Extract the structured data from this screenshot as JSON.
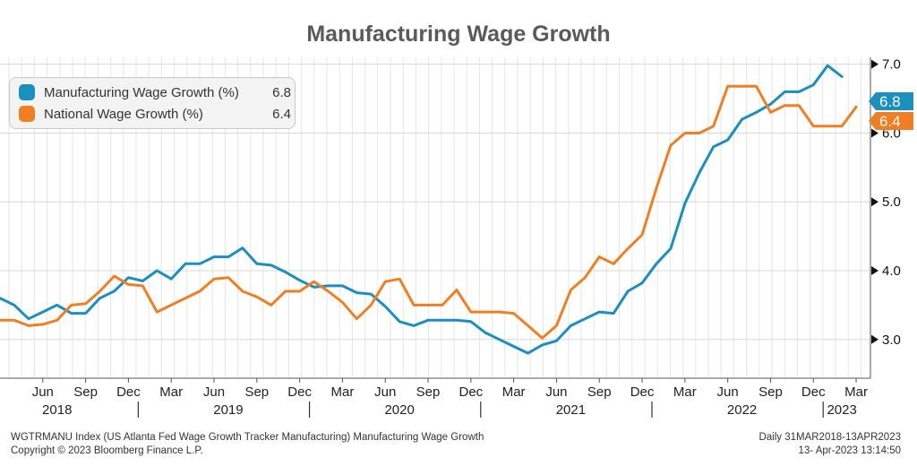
{
  "chart_data": {
    "type": "line",
    "title": "Manufacturing Wage Growth",
    "ylim": [
      2.45,
      7.1
    ],
    "yticks": [
      3.0,
      4.0,
      5.0,
      6.0,
      7.0
    ],
    "ytick_labels": [
      "3.0",
      "4.0",
      "5.0",
      "6.0",
      "7.0"
    ],
    "x_range": [
      "2018-03",
      "2023-04"
    ],
    "month_ticks": [
      {
        "label": "Jun",
        "date": "2018-06"
      },
      {
        "label": "Sep",
        "date": "2018-09"
      },
      {
        "label": "Dec",
        "date": "2018-12"
      },
      {
        "label": "Mar",
        "date": "2019-03"
      },
      {
        "label": "Jun",
        "date": "2019-06"
      },
      {
        "label": "Sep",
        "date": "2019-09"
      },
      {
        "label": "Dec",
        "date": "2019-12"
      },
      {
        "label": "Mar",
        "date": "2020-03"
      },
      {
        "label": "Jun",
        "date": "2020-06"
      },
      {
        "label": "Sep",
        "date": "2020-09"
      },
      {
        "label": "Dec",
        "date": "2020-12"
      },
      {
        "label": "Mar",
        "date": "2021-03"
      },
      {
        "label": "Jun",
        "date": "2021-06"
      },
      {
        "label": "Sep",
        "date": "2021-09"
      },
      {
        "label": "Dec",
        "date": "2021-12"
      },
      {
        "label": "Mar",
        "date": "2022-03"
      },
      {
        "label": "Jun",
        "date": "2022-06"
      },
      {
        "label": "Sep",
        "date": "2022-09"
      },
      {
        "label": "Dec",
        "date": "2022-12"
      },
      {
        "label": "Mar",
        "date": "2023-03"
      }
    ],
    "year_labels": [
      {
        "label": "2018",
        "date": "2018-07"
      },
      {
        "label": "2019",
        "date": "2019-07"
      },
      {
        "label": "2020",
        "date": "2020-07"
      },
      {
        "label": "2021",
        "date": "2021-07"
      },
      {
        "label": "2022",
        "date": "2022-07"
      },
      {
        "label": "2023",
        "date": "2023-02"
      }
    ],
    "year_separators": [
      "2019-01",
      "2020-01",
      "2021-01",
      "2022-01",
      "2023-01"
    ],
    "grid": true,
    "legend_position": "top-left",
    "series": [
      {
        "name": "Manufacturing Wage Growth (%)",
        "last_value": "6.8",
        "color": "#1a8fc0",
        "points": [
          [
            "2018-03",
            3.6
          ],
          [
            "2018-04",
            3.5
          ],
          [
            "2018-05",
            3.3
          ],
          [
            "2018-06",
            3.4
          ],
          [
            "2018-07",
            3.5
          ],
          [
            "2018-08",
            3.38
          ],
          [
            "2018-09",
            3.38
          ],
          [
            "2018-10",
            3.6
          ],
          [
            "2018-11",
            3.7
          ],
          [
            "2018-12",
            3.9
          ],
          [
            "2019-01",
            3.85
          ],
          [
            "2019-02",
            4.0
          ],
          [
            "2019-03",
            3.88
          ],
          [
            "2019-04",
            4.1
          ],
          [
            "2019-05",
            4.1
          ],
          [
            "2019-06",
            4.2
          ],
          [
            "2019-07",
            4.2
          ],
          [
            "2019-08",
            4.33
          ],
          [
            "2019-09",
            4.1
          ],
          [
            "2019-10",
            4.08
          ],
          [
            "2019-11",
            3.98
          ],
          [
            "2019-12",
            3.86
          ],
          [
            "2020-01",
            3.76
          ],
          [
            "2020-02",
            3.78
          ],
          [
            "2020-03",
            3.78
          ],
          [
            "2020-04",
            3.68
          ],
          [
            "2020-05",
            3.66
          ],
          [
            "2020-06",
            3.48
          ],
          [
            "2020-07",
            3.26
          ],
          [
            "2020-08",
            3.2
          ],
          [
            "2020-09",
            3.28
          ],
          [
            "2020-10",
            3.28
          ],
          [
            "2020-11",
            3.28
          ],
          [
            "2020-12",
            3.26
          ],
          [
            "2021-01",
            3.1
          ],
          [
            "2021-02",
            3.0
          ],
          [
            "2021-03",
            2.9
          ],
          [
            "2021-04",
            2.8
          ],
          [
            "2021-05",
            2.92
          ],
          [
            "2021-06",
            2.98
          ],
          [
            "2021-07",
            3.2
          ],
          [
            "2021-08",
            3.3
          ],
          [
            "2021-09",
            3.4
          ],
          [
            "2021-10",
            3.38
          ],
          [
            "2021-11",
            3.7
          ],
          [
            "2021-12",
            3.82
          ],
          [
            "2022-01",
            4.1
          ],
          [
            "2022-02",
            4.32
          ],
          [
            "2022-03",
            4.98
          ],
          [
            "2022-04",
            5.42
          ],
          [
            "2022-05",
            5.8
          ],
          [
            "2022-06",
            5.9
          ],
          [
            "2022-07",
            6.2
          ],
          [
            "2022-08",
            6.3
          ],
          [
            "2022-09",
            6.42
          ],
          [
            "2022-10",
            6.6
          ],
          [
            "2022-11",
            6.6
          ],
          [
            "2022-12",
            6.7
          ],
          [
            "2023-01",
            6.98
          ],
          [
            "2023-02",
            6.82
          ]
        ]
      },
      {
        "name": "National Wage Growth (%)",
        "last_value": "6.4",
        "color": "#f07f22",
        "points": [
          [
            "2018-03",
            3.28
          ],
          [
            "2018-04",
            3.28
          ],
          [
            "2018-05",
            3.2
          ],
          [
            "2018-06",
            3.22
          ],
          [
            "2018-07",
            3.28
          ],
          [
            "2018-08",
            3.5
          ],
          [
            "2018-09",
            3.52
          ],
          [
            "2018-10",
            3.7
          ],
          [
            "2018-11",
            3.92
          ],
          [
            "2018-12",
            3.8
          ],
          [
            "2019-01",
            3.78
          ],
          [
            "2019-02",
            3.4
          ],
          [
            "2019-03",
            3.5
          ],
          [
            "2019-04",
            3.6
          ],
          [
            "2019-05",
            3.7
          ],
          [
            "2019-06",
            3.88
          ],
          [
            "2019-07",
            3.9
          ],
          [
            "2019-08",
            3.7
          ],
          [
            "2019-09",
            3.62
          ],
          [
            "2019-10",
            3.5
          ],
          [
            "2019-11",
            3.7
          ],
          [
            "2019-12",
            3.7
          ],
          [
            "2020-01",
            3.84
          ],
          [
            "2020-02",
            3.7
          ],
          [
            "2020-03",
            3.54
          ],
          [
            "2020-04",
            3.3
          ],
          [
            "2020-05",
            3.5
          ],
          [
            "2020-06",
            3.84
          ],
          [
            "2020-07",
            3.88
          ],
          [
            "2020-08",
            3.5
          ],
          [
            "2020-09",
            3.5
          ],
          [
            "2020-10",
            3.5
          ],
          [
            "2020-11",
            3.72
          ],
          [
            "2020-12",
            3.4
          ],
          [
            "2021-01",
            3.4
          ],
          [
            "2021-02",
            3.4
          ],
          [
            "2021-03",
            3.38
          ],
          [
            "2021-04",
            3.2
          ],
          [
            "2021-05",
            3.02
          ],
          [
            "2021-06",
            3.2
          ],
          [
            "2021-07",
            3.72
          ],
          [
            "2021-08",
            3.9
          ],
          [
            "2021-09",
            4.2
          ],
          [
            "2021-10",
            4.1
          ],
          [
            "2021-11",
            4.32
          ],
          [
            "2021-12",
            4.52
          ],
          [
            "2022-01",
            5.2
          ],
          [
            "2022-02",
            5.82
          ],
          [
            "2022-03",
            6.0
          ],
          [
            "2022-04",
            6.0
          ],
          [
            "2022-05",
            6.1
          ],
          [
            "2022-06",
            6.68
          ],
          [
            "2022-07",
            6.68
          ],
          [
            "2022-08",
            6.68
          ],
          [
            "2022-09",
            6.3
          ],
          [
            "2022-10",
            6.4
          ],
          [
            "2022-11",
            6.4
          ],
          [
            "2022-12",
            6.1
          ],
          [
            "2023-01",
            6.1
          ],
          [
            "2023-02",
            6.1
          ],
          [
            "2023-03",
            6.38
          ]
        ]
      }
    ]
  },
  "footer": {
    "source": "WGTRMANU Index (US Atlanta Fed Wage Growth Tracker Manufacturing) Manufacturing Wage Growth",
    "copyright": "Copyright © 2023 Bloomberg Finance L.P.",
    "range": "Daily 31MAR2018-13APR2023",
    "timestamp": "13- Apr-2023 13:14:50"
  }
}
